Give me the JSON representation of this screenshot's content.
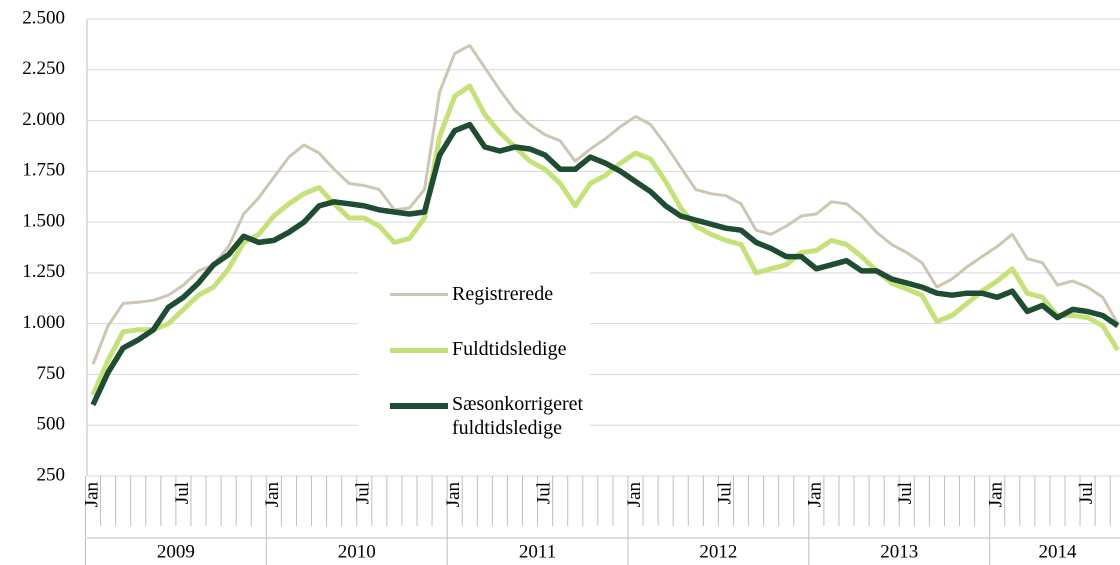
{
  "chart_data": {
    "type": "line",
    "categories": [
      "Jan",
      null,
      null,
      null,
      null,
      null,
      "Jul",
      null,
      null,
      null,
      null,
      null,
      "Jan",
      null,
      null,
      null,
      null,
      null,
      "Jul",
      null,
      null,
      null,
      null,
      null,
      "Jan",
      null,
      null,
      null,
      null,
      null,
      "Jul",
      null,
      null,
      null,
      null,
      null,
      "Jan",
      null,
      null,
      null,
      null,
      null,
      "Jul",
      null,
      null,
      null,
      null,
      null,
      "Jan",
      null,
      null,
      null,
      null,
      null,
      "Jul",
      null,
      null,
      null,
      null,
      null,
      "Jan",
      null,
      null,
      null,
      null,
      null,
      "Jul",
      null,
      null
    ],
    "years": [
      "2009",
      "2010",
      "2011",
      "2012",
      "2013",
      "2014"
    ],
    "series": [
      {
        "name": "Registrerede",
        "color": "#cdc6b3",
        "values": [
          800,
          990,
          1100,
          1105,
          1115,
          1140,
          1190,
          1260,
          1290,
          1380,
          1540,
          1620,
          1720,
          1820,
          1880,
          1840,
          1760,
          1690,
          1680,
          1660,
          1560,
          1570,
          1660,
          2140,
          2330,
          2370,
          2260,
          2150,
          2050,
          1980,
          1930,
          1900,
          1800,
          1860,
          1910,
          1970,
          2020,
          1980,
          1880,
          1770,
          1660,
          1640,
          1630,
          1590,
          1460,
          1440,
          1480,
          1530,
          1540,
          1600,
          1590,
          1530,
          1450,
          1390,
          1350,
          1300,
          1180,
          1220,
          1280,
          1330,
          1380,
          1440,
          1320,
          1300,
          1190,
          1210,
          1180,
          1130,
          1000
        ]
      },
      {
        "name": "Fuldtidsledige",
        "color": "#c5e17a",
        "values": [
          650,
          820,
          960,
          970,
          970,
          1000,
          1070,
          1140,
          1180,
          1270,
          1400,
          1440,
          1530,
          1590,
          1640,
          1670,
          1590,
          1520,
          1520,
          1480,
          1400,
          1420,
          1520,
          1920,
          2120,
          2170,
          2030,
          1940,
          1870,
          1800,
          1760,
          1690,
          1580,
          1690,
          1730,
          1790,
          1840,
          1810,
          1700,
          1570,
          1480,
          1440,
          1410,
          1390,
          1250,
          1270,
          1290,
          1350,
          1360,
          1410,
          1390,
          1330,
          1260,
          1200,
          1170,
          1140,
          1010,
          1040,
          1100,
          1160,
          1210,
          1270,
          1150,
          1130,
          1040,
          1040,
          1030,
          990,
          870
        ]
      },
      {
        "name": "Sæsonkorrigeret fuldtidsledige",
        "color": "#1e4d33",
        "values": [
          600,
          760,
          880,
          920,
          970,
          1080,
          1130,
          1200,
          1290,
          1340,
          1430,
          1400,
          1410,
          1450,
          1500,
          1580,
          1600,
          1590,
          1580,
          1560,
          1550,
          1540,
          1550,
          1830,
          1950,
          1980,
          1870,
          1850,
          1870,
          1860,
          1830,
          1760,
          1760,
          1820,
          1790,
          1750,
          1700,
          1650,
          1580,
          1530,
          1510,
          1490,
          1470,
          1460,
          1400,
          1370,
          1330,
          1330,
          1270,
          1290,
          1310,
          1260,
          1260,
          1220,
          1200,
          1180,
          1150,
          1140,
          1150,
          1150,
          1130,
          1160,
          1060,
          1090,
          1030,
          1070,
          1060,
          1040,
          990
        ]
      }
    ],
    "ylim": [
      250,
      2500
    ],
    "yticks": [
      {
        "value": 2500,
        "label": "2.500"
      },
      {
        "value": 2250,
        "label": "2.250"
      },
      {
        "value": 2000,
        "label": "2.000"
      },
      {
        "value": 1750,
        "label": "1.750"
      },
      {
        "value": 1500,
        "label": "1.500"
      },
      {
        "value": 1250,
        "label": "1.250"
      },
      {
        "value": 1000,
        "label": "1.000"
      },
      750,
      500,
      250
    ],
    "grid": true
  }
}
